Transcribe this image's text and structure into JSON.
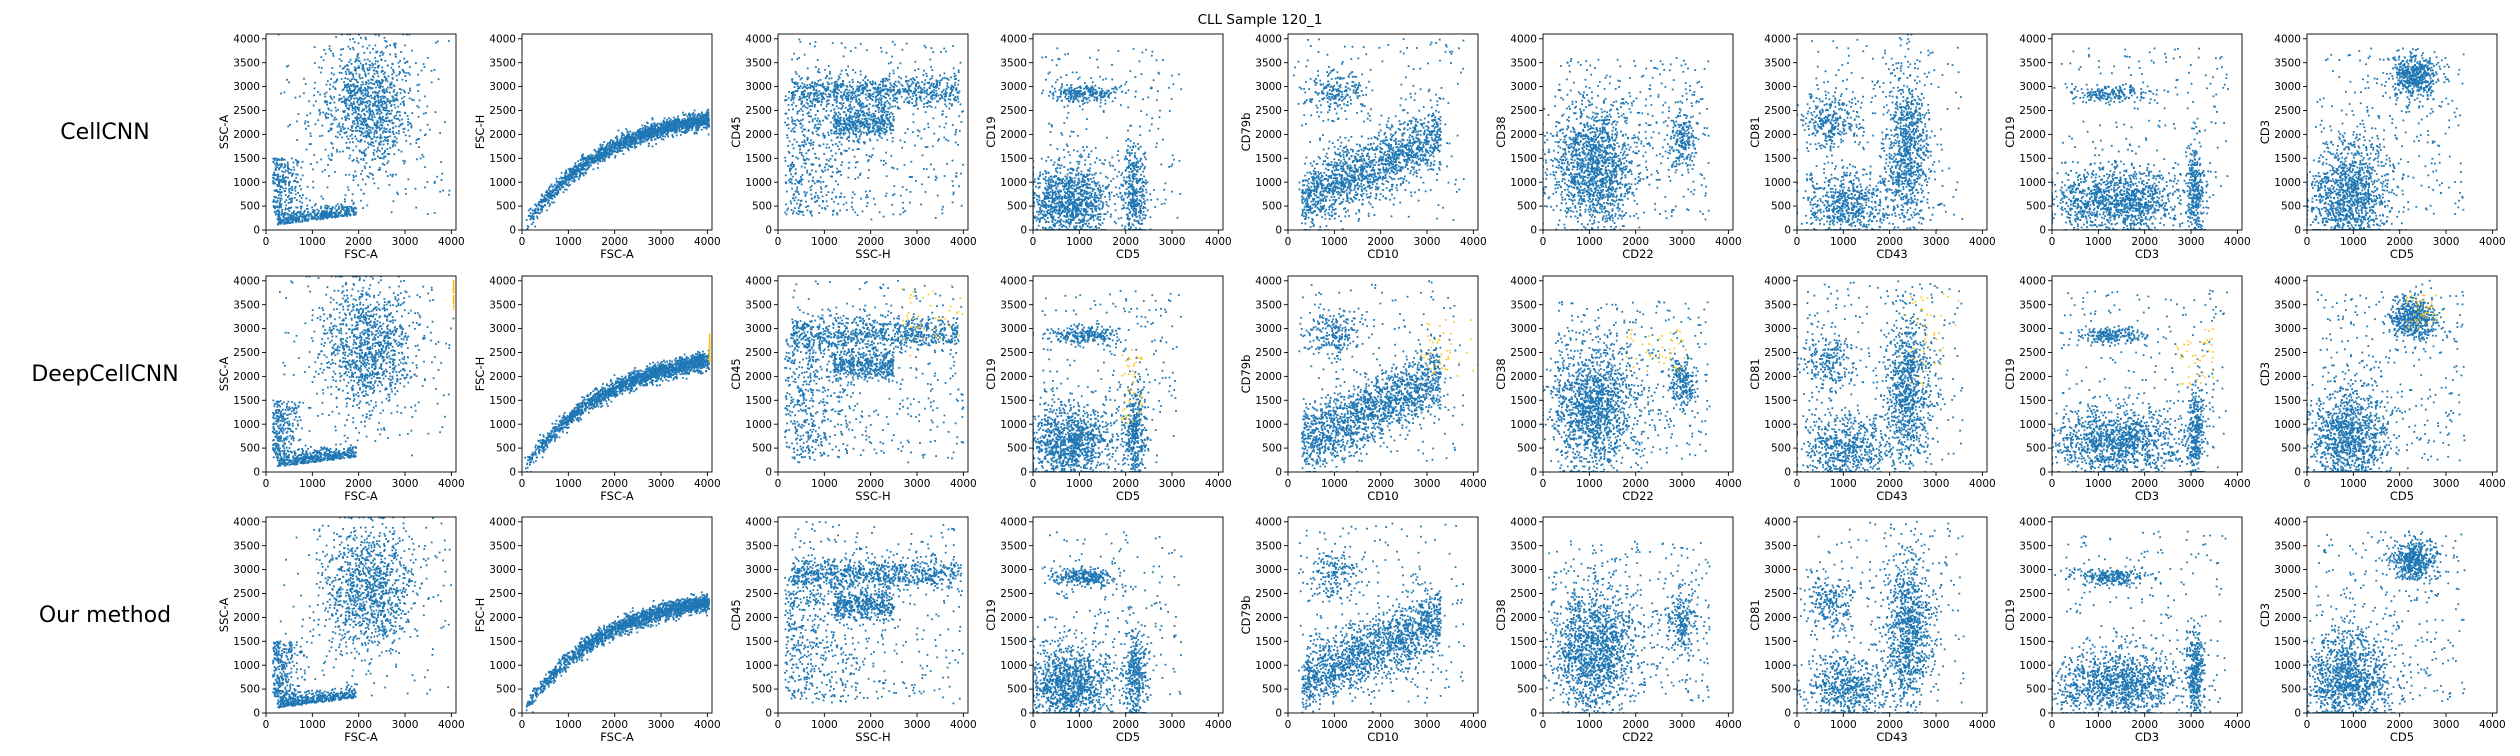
{
  "figure": {
    "title": "CLL Sample 120_1",
    "row_labels": [
      "CellCNN",
      "DeepCellCNN",
      "Our method"
    ],
    "colors": {
      "points": "#1f77b4",
      "highlight": "#ffc107"
    }
  },
  "chart_data": {
    "type": "scatter",
    "title": "CLL Sample 120_1",
    "rows": [
      "CellCNN",
      "DeepCellCNN",
      "Our method"
    ],
    "grid": false,
    "panels": [
      {
        "id": "fsca-ssca",
        "xlabel": "FSC-A",
        "ylabel": "SSC-A",
        "xlim": [
          0,
          4100
        ],
        "ylim": [
          0,
          4100
        ]
      },
      {
        "id": "fsca-fsch",
        "xlabel": "FSC-A",
        "ylabel": "FSC-H",
        "xlim": [
          0,
          4100
        ],
        "ylim": [
          0,
          4100
        ]
      },
      {
        "id": "ssch-cd45",
        "xlabel": "SSC-H",
        "ylabel": "CD45",
        "xlim": [
          0,
          4100
        ],
        "ylim": [
          0,
          4100
        ]
      },
      {
        "id": "cd5-cd19",
        "xlabel": "CD5",
        "ylabel": "CD19",
        "xlim": [
          0,
          4100
        ],
        "ylim": [
          0,
          4100
        ]
      },
      {
        "id": "cd10-cd79b",
        "xlabel": "CD10",
        "ylabel": "CD79b",
        "xlim": [
          0,
          4100
        ],
        "ylim": [
          0,
          4100
        ]
      },
      {
        "id": "cd22-cd38",
        "xlabel": "CD22",
        "ylabel": "CD38",
        "xlim": [
          0,
          4100
        ],
        "ylim": [
          0,
          4100
        ]
      },
      {
        "id": "cd43-cd81",
        "xlabel": "CD43",
        "ylabel": "CD81",
        "xlim": [
          0,
          4100
        ],
        "ylim": [
          0,
          4100
        ]
      },
      {
        "id": "cd3-cd19",
        "xlabel": "CD3",
        "ylabel": "CD19",
        "xlim": [
          0,
          4100
        ],
        "ylim": [
          0,
          4100
        ]
      },
      {
        "id": "cd5-cd3",
        "xlabel": "CD5",
        "ylabel": "CD3",
        "xlim": [
          0,
          4100
        ],
        "ylim": [
          0,
          4100
        ]
      }
    ],
    "xticks": [
      0,
      1000,
      2000,
      3000,
      4000
    ],
    "yticks": [
      0,
      500,
      1000,
      1500,
      2000,
      2500,
      3000,
      3500,
      4000
    ],
    "series": [
      {
        "color": "#1f77b4",
        "rows": [
          0,
          1,
          2
        ]
      },
      {
        "color": "#ffc107",
        "rows": [
          1
        ]
      }
    ]
  }
}
